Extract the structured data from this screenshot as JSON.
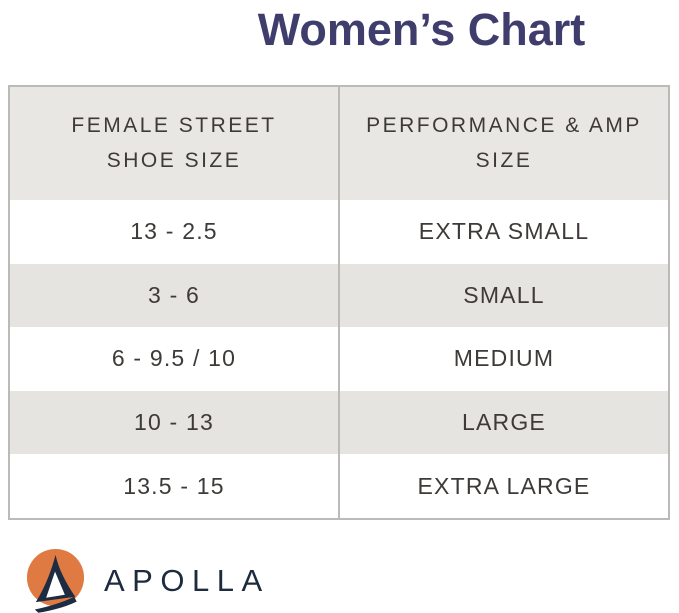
{
  "title": "Women’s Chart",
  "chart_data": {
    "type": "table",
    "title": "Women’s Chart",
    "columns": [
      "FEMALE STREET\nSHOE SIZE",
      "PERFORMANCE & AMP\nSIZE"
    ],
    "rows": [
      [
        "13 - 2.5",
        "EXTRA SMALL"
      ],
      [
        "3 - 6",
        "SMALL"
      ],
      [
        "6 - 9.5 / 10",
        "MEDIUM"
      ],
      [
        "10 - 13",
        "LARGE"
      ],
      [
        "13.5 - 15",
        "EXTRA LARGE"
      ]
    ]
  },
  "brand": {
    "name": "APOLLA",
    "logo_icon": "apolla-circle-a-icon"
  },
  "colors": {
    "title_navy": "#3f3d6c",
    "header_row_bg": "#e9e7e4",
    "alt_row_bg": "#e6e4e1",
    "table_border": "#bcbab7",
    "cell_text": "#3d3a37",
    "brand_orange": "#df7a42",
    "brand_navy": "#1d2c41"
  }
}
